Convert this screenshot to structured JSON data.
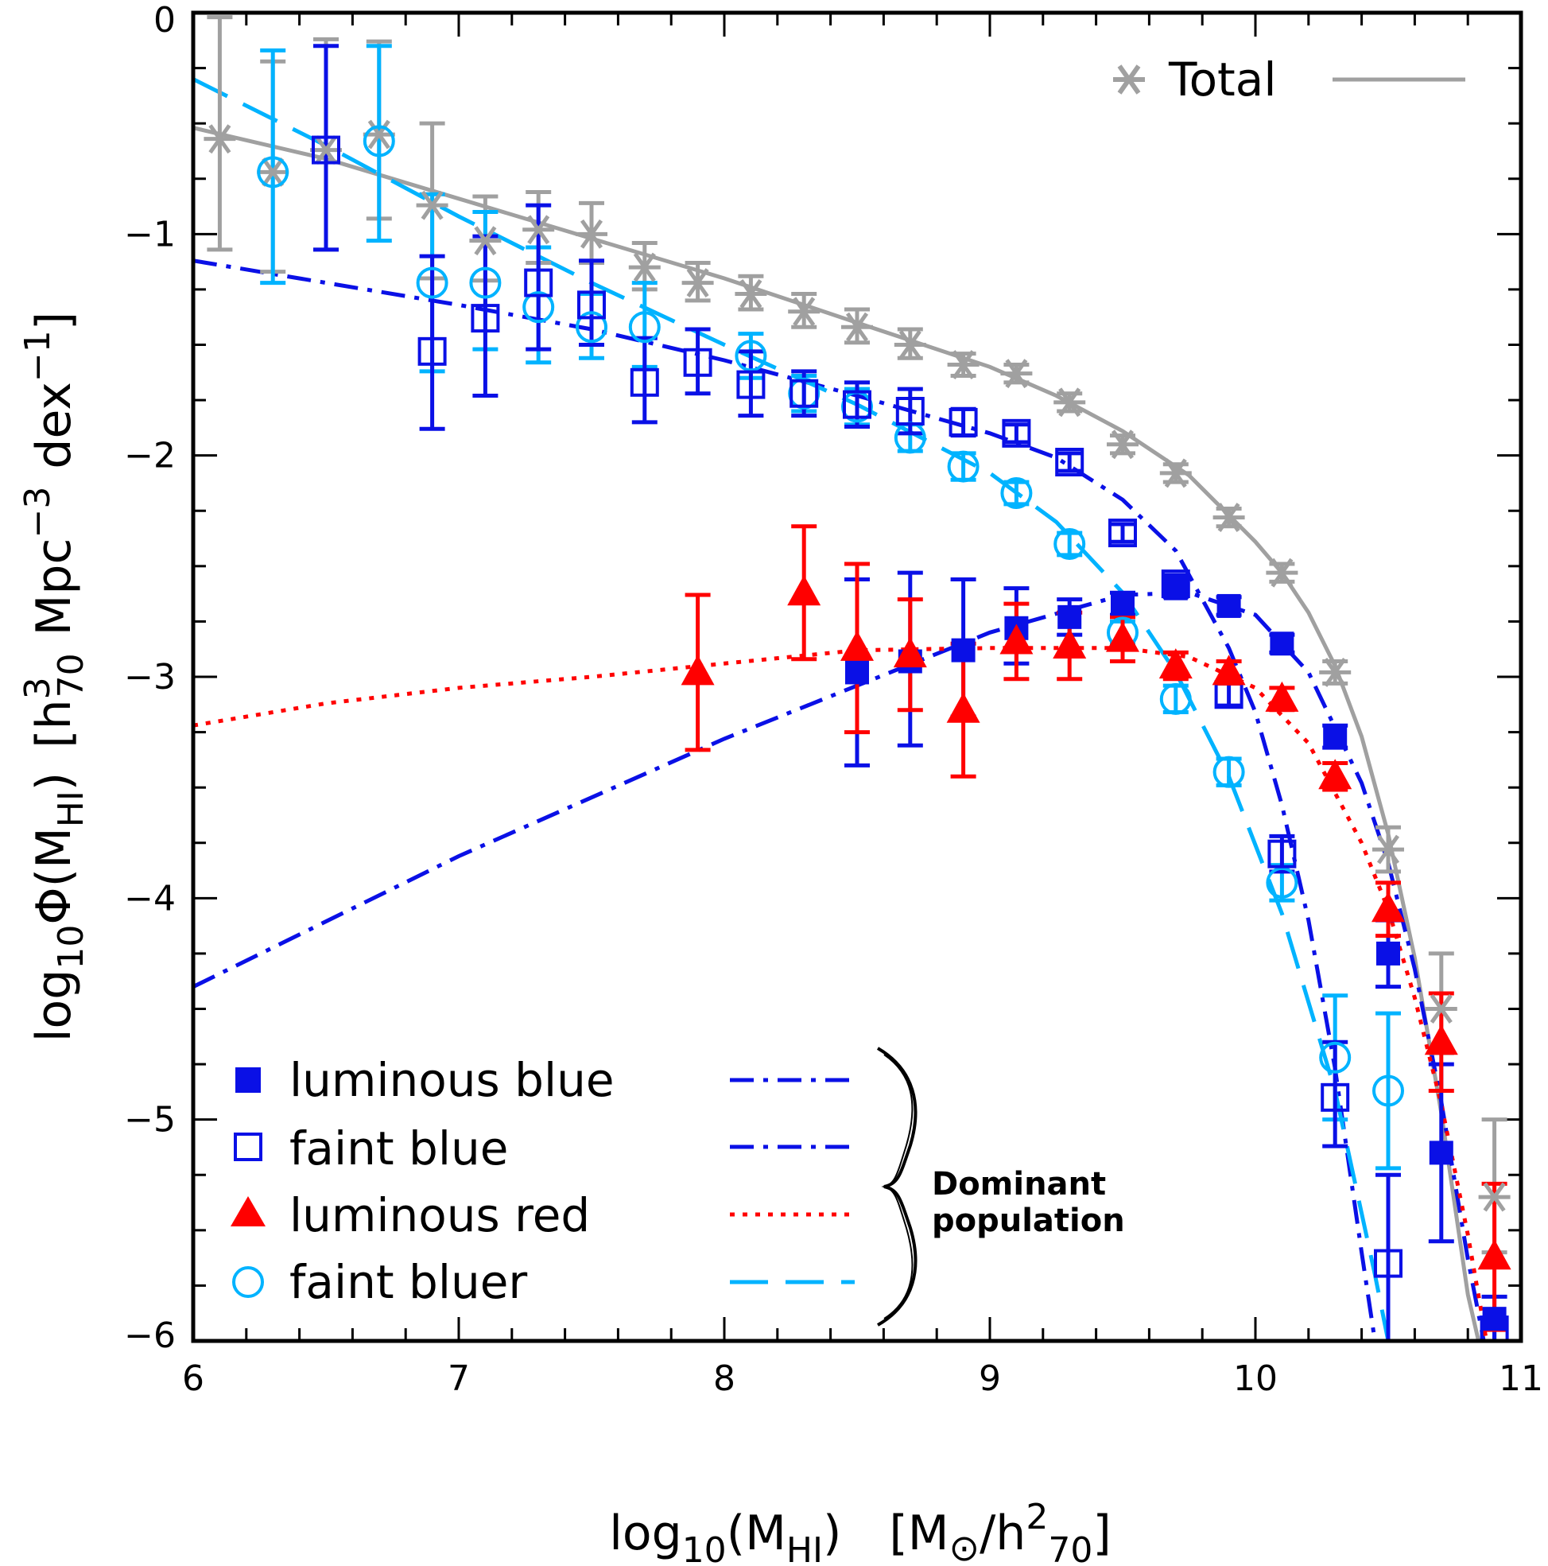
{
  "chart_data": {
    "type": "scatter",
    "xlim": [
      6,
      11
    ],
    "ylim": [
      -6,
      0
    ],
    "x_ticks": [
      6,
      7,
      8,
      9,
      10,
      11
    ],
    "y_ticks": [
      0,
      -1,
      -2,
      -3,
      -4,
      -5,
      -6
    ],
    "x_tick_labels": [
      "6",
      "7",
      "8",
      "9",
      "10",
      "11"
    ],
    "y_tick_labels": [
      "0",
      "−1",
      "−2",
      "−3",
      "−4",
      "−5",
      "−6"
    ],
    "xlabel": {
      "pre": "log",
      "sub1": "10",
      "mid": "(M",
      "sub2": "HI",
      "post": ")",
      "bracket_open": "[M",
      "sun": "⊙",
      "slash": "/h",
      "sup": "2",
      "sub3": "70",
      "bracket_close": "]"
    },
    "ylabel": {
      "pre": "log",
      "sub1": "10",
      "mid": "Φ(M",
      "sub2": "HI",
      "post": ")",
      "bracket_open": "[h",
      "sup1": "3",
      "sub3": "70",
      "unit1": "Mpc",
      "sup2": "−3",
      "unit2": "dex",
      "sup3": "−1",
      "bracket_close": "]"
    },
    "legend_brace_text": [
      "Dominant",
      "population"
    ],
    "series": [
      {
        "key": "total",
        "name": "Total",
        "color": "#a0a0a0",
        "marker": "asterisk",
        "line": "solid",
        "points": [
          [
            6.1,
            -0.57,
            0.5,
            0.55
          ],
          [
            6.3,
            -0.72,
            0.45,
            0.5
          ],
          [
            6.5,
            -0.62,
            0.45,
            0.5
          ],
          [
            6.7,
            -0.55,
            0.38,
            0.42
          ],
          [
            6.9,
            -0.87,
            0.33,
            0.37
          ],
          [
            7.1,
            -1.03,
            0.18,
            0.2
          ],
          [
            7.3,
            -0.98,
            0.15,
            0.17
          ],
          [
            7.5,
            -1.0,
            0.13,
            0.14
          ],
          [
            7.7,
            -1.15,
            0.1,
            0.11
          ],
          [
            7.9,
            -1.22,
            0.08,
            0.09
          ],
          [
            8.1,
            -1.27,
            0.07,
            0.08
          ],
          [
            8.3,
            -1.35,
            0.07,
            0.08
          ],
          [
            8.5,
            -1.42,
            0.07,
            0.08
          ],
          [
            8.7,
            -1.5,
            0.06,
            0.07
          ],
          [
            8.9,
            -1.59,
            0.05,
            0.05
          ],
          [
            9.1,
            -1.63,
            0.04,
            0.04
          ],
          [
            9.3,
            -1.76,
            0.04,
            0.04
          ],
          [
            9.5,
            -1.95,
            0.04,
            0.04
          ],
          [
            9.7,
            -2.08,
            0.04,
            0.04
          ],
          [
            9.9,
            -2.28,
            0.04,
            0.04
          ],
          [
            10.1,
            -2.53,
            0.04,
            0.04
          ],
          [
            10.3,
            -2.98,
            0.05,
            0.05
          ],
          [
            10.5,
            -3.78,
            0.1,
            0.1
          ],
          [
            10.7,
            -4.5,
            0.2,
            0.25
          ],
          [
            10.9,
            -5.35,
            0.25,
            0.35
          ]
        ],
        "curve": [
          [
            6.0,
            -0.52
          ],
          [
            6.5,
            -0.66
          ],
          [
            7.0,
            -0.84
          ],
          [
            7.5,
            -1.02
          ],
          [
            8.0,
            -1.2
          ],
          [
            8.5,
            -1.4
          ],
          [
            9.0,
            -1.6
          ],
          [
            9.25,
            -1.73
          ],
          [
            9.5,
            -1.89
          ],
          [
            9.75,
            -2.09
          ],
          [
            10.0,
            -2.39
          ],
          [
            10.1,
            -2.53
          ],
          [
            10.2,
            -2.71
          ],
          [
            10.3,
            -2.95
          ],
          [
            10.4,
            -3.27
          ],
          [
            10.5,
            -3.71
          ],
          [
            10.6,
            -4.27
          ],
          [
            10.7,
            -4.97
          ],
          [
            10.8,
            -5.79
          ],
          [
            10.84,
            -6.0
          ]
        ]
      },
      {
        "key": "lblue",
        "name": "luminous blue",
        "color": "#0a10e6",
        "marker": "filled-square",
        "line": "dash-dot",
        "points": [
          [
            8.5,
            -2.98,
            0.42,
            0.42
          ],
          [
            8.7,
            -2.93,
            0.38,
            0.4
          ],
          [
            8.9,
            -2.88,
            0.3,
            0.32
          ],
          [
            9.1,
            -2.78,
            0.16,
            0.18
          ],
          [
            9.3,
            -2.73,
            0.08,
            0.08
          ],
          [
            9.5,
            -2.67,
            0.05,
            0.05
          ],
          [
            9.7,
            -2.6,
            0.04,
            0.04
          ],
          [
            9.9,
            -2.68,
            0.04,
            0.04
          ],
          [
            10.1,
            -2.85,
            0.04,
            0.04
          ],
          [
            10.3,
            -3.27,
            0.05,
            0.05
          ],
          [
            10.5,
            -4.25,
            0.15,
            0.15
          ],
          [
            10.7,
            -5.15,
            0.4,
            0.4
          ],
          [
            10.9,
            -5.9,
            0.1,
            0.1
          ]
        ],
        "curve": [
          [
            6.0,
            -4.4
          ],
          [
            7.0,
            -3.81
          ],
          [
            8.0,
            -3.28
          ],
          [
            8.5,
            -3.04
          ],
          [
            9.0,
            -2.8
          ],
          [
            9.5,
            -2.63
          ],
          [
            9.75,
            -2.62
          ],
          [
            10.0,
            -2.72
          ],
          [
            10.2,
            -2.98
          ],
          [
            10.4,
            -3.48
          ],
          [
            10.5,
            -3.84
          ],
          [
            10.6,
            -4.32
          ],
          [
            10.7,
            -4.92
          ],
          [
            10.8,
            -5.63
          ],
          [
            10.86,
            -6.0
          ]
        ]
      },
      {
        "key": "fblue",
        "name": "faint blue",
        "color": "#0a10e6",
        "marker": "open-square",
        "line": "dash-dot",
        "points": [
          [
            6.5,
            -0.62,
            0.45,
            0.47
          ],
          [
            6.9,
            -1.53,
            0.35,
            0.43
          ],
          [
            7.1,
            -1.38,
            0.35,
            0.37
          ],
          [
            7.3,
            -1.22,
            0.3,
            0.35
          ],
          [
            7.5,
            -1.32,
            0.18,
            0.2
          ],
          [
            7.7,
            -1.67,
            0.18,
            0.2
          ],
          [
            7.9,
            -1.58,
            0.14,
            0.15
          ],
          [
            8.1,
            -1.68,
            0.14,
            0.15
          ],
          [
            8.3,
            -1.72,
            0.1,
            0.1
          ],
          [
            8.5,
            -1.77,
            0.1,
            0.1
          ],
          [
            8.7,
            -1.8,
            0.1,
            0.1
          ],
          [
            8.9,
            -1.85,
            0.06,
            0.06
          ],
          [
            9.1,
            -1.9,
            0.04,
            0.04
          ],
          [
            9.3,
            -2.03,
            0.04,
            0.04
          ],
          [
            9.5,
            -2.35,
            0.04,
            0.04
          ],
          [
            9.7,
            -2.58,
            0.04,
            0.04
          ],
          [
            9.9,
            -3.08,
            0.05,
            0.05
          ],
          [
            10.1,
            -3.8,
            0.08,
            0.08
          ],
          [
            10.3,
            -4.9,
            0.22,
            0.25
          ],
          [
            10.5,
            -5.65,
            0.35,
            0.4
          ],
          [
            10.9,
            -5.95,
            0.05,
            0.05
          ]
        ],
        "curve": [
          [
            6.0,
            -1.12
          ],
          [
            6.5,
            -1.22
          ],
          [
            7.0,
            -1.32
          ],
          [
            7.5,
            -1.43
          ],
          [
            8.0,
            -1.57
          ],
          [
            8.5,
            -1.73
          ],
          [
            9.0,
            -1.9
          ],
          [
            9.25,
            -2.01
          ],
          [
            9.5,
            -2.2
          ],
          [
            9.7,
            -2.43
          ],
          [
            9.9,
            -2.87
          ],
          [
            10.0,
            -3.16
          ],
          [
            10.1,
            -3.58
          ],
          [
            10.2,
            -4.1
          ],
          [
            10.3,
            -4.77
          ],
          [
            10.4,
            -5.6
          ],
          [
            10.45,
            -6.0
          ]
        ]
      },
      {
        "key": "lred",
        "name": "luminous red",
        "color": "#ff0000",
        "marker": "filled-triangle",
        "line": "dotted",
        "points": [
          [
            7.9,
            -2.98,
            0.35,
            0.35
          ],
          [
            8.3,
            -2.62,
            0.3,
            0.3
          ],
          [
            8.5,
            -2.87,
            0.38,
            0.38
          ],
          [
            8.7,
            -2.9,
            0.25,
            0.25
          ],
          [
            8.9,
            -3.15,
            0.3,
            0.3
          ],
          [
            9.1,
            -2.84,
            0.17,
            0.17
          ],
          [
            9.3,
            -2.86,
            0.15,
            0.15
          ],
          [
            9.5,
            -2.83,
            0.1,
            0.1
          ],
          [
            9.7,
            -2.95,
            0.06,
            0.06
          ],
          [
            9.9,
            -2.98,
            0.05,
            0.05
          ],
          [
            10.1,
            -3.1,
            0.05,
            0.05
          ],
          [
            10.3,
            -3.45,
            0.06,
            0.06
          ],
          [
            10.5,
            -4.05,
            0.12,
            0.12
          ],
          [
            10.7,
            -4.65,
            0.22,
            0.22
          ],
          [
            10.9,
            -5.62,
            0.33,
            0.33
          ]
        ],
        "curve": [
          [
            6.0,
            -3.22
          ],
          [
            6.5,
            -3.12
          ],
          [
            7.0,
            -3.05
          ],
          [
            7.5,
            -3.0
          ],
          [
            8.0,
            -2.94
          ],
          [
            8.5,
            -2.88
          ],
          [
            9.0,
            -2.87
          ],
          [
            9.5,
            -2.87
          ],
          [
            9.75,
            -2.91
          ],
          [
            10.0,
            -3.05
          ],
          [
            10.2,
            -3.3
          ],
          [
            10.4,
            -3.75
          ],
          [
            10.5,
            -4.05
          ],
          [
            10.6,
            -4.45
          ],
          [
            10.7,
            -4.93
          ],
          [
            10.8,
            -5.52
          ],
          [
            10.87,
            -6.0
          ]
        ]
      },
      {
        "key": "fbluer",
        "name": "faint bluer",
        "color": "#00b3ff",
        "marker": "open-circle",
        "line": "long-dash",
        "points": [
          [
            6.3,
            -0.72,
            0.5,
            0.55
          ],
          [
            6.7,
            -0.58,
            0.45,
            0.43
          ],
          [
            6.9,
            -1.22,
            0.4,
            0.4
          ],
          [
            7.1,
            -1.22,
            0.3,
            0.32
          ],
          [
            7.3,
            -1.33,
            0.25,
            0.27
          ],
          [
            7.5,
            -1.42,
            0.14,
            0.15
          ],
          [
            7.7,
            -1.42,
            0.18,
            0.2
          ],
          [
            8.1,
            -1.55,
            0.1,
            0.1
          ],
          [
            8.3,
            -1.72,
            0.08,
            0.08
          ],
          [
            8.5,
            -1.78,
            0.08,
            0.08
          ],
          [
            8.7,
            -1.92,
            0.06,
            0.06
          ],
          [
            8.9,
            -2.05,
            0.06,
            0.06
          ],
          [
            9.1,
            -2.17,
            0.05,
            0.05
          ],
          [
            9.3,
            -2.4,
            0.05,
            0.05
          ],
          [
            9.5,
            -2.8,
            0.05,
            0.05
          ],
          [
            9.7,
            -3.1,
            0.06,
            0.06
          ],
          [
            9.9,
            -3.43,
            0.06,
            0.06
          ],
          [
            10.1,
            -3.93,
            0.08,
            0.08
          ],
          [
            10.3,
            -4.72,
            0.28,
            0.28
          ],
          [
            10.5,
            -4.87,
            0.35,
            0.35
          ]
        ],
        "curve": [
          [
            6.0,
            -0.3
          ],
          [
            6.5,
            -0.6
          ],
          [
            7.0,
            -0.92
          ],
          [
            7.5,
            -1.22
          ],
          [
            8.0,
            -1.5
          ],
          [
            8.5,
            -1.77
          ],
          [
            9.0,
            -2.08
          ],
          [
            9.25,
            -2.3
          ],
          [
            9.5,
            -2.62
          ],
          [
            9.7,
            -2.98
          ],
          [
            9.9,
            -3.45
          ],
          [
            10.1,
            -4.07
          ],
          [
            10.3,
            -4.87
          ],
          [
            10.45,
            -5.7
          ],
          [
            10.5,
            -6.0
          ]
        ]
      }
    ]
  }
}
